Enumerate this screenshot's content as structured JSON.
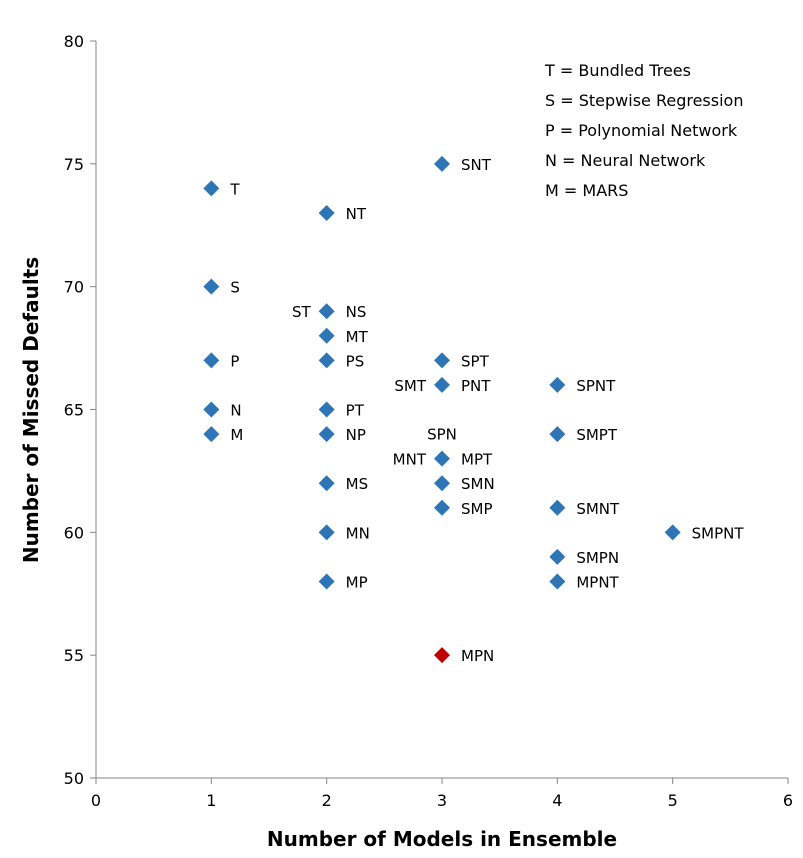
{
  "chart_data": {
    "type": "scatter",
    "title": "",
    "xlabel": "Number of Models in Ensemble",
    "ylabel": "Number of Missed Defaults",
    "xlim": [
      0,
      6
    ],
    "ylim": [
      50,
      80
    ],
    "xticks": [
      0,
      1,
      2,
      3,
      4,
      5,
      6
    ],
    "yticks": [
      50,
      55,
      60,
      65,
      70,
      75,
      80
    ],
    "grid": false,
    "legend_position": "top-right",
    "legend": [
      "T = Bundled Trees",
      "S = Stepwise Regression",
      "P = Polynomial Network",
      "N = Neural Network",
      "M = MARS"
    ],
    "colors": {
      "default": "#2E75B6",
      "highlight": "#C00000"
    },
    "points": [
      {
        "x": 1,
        "y": 74,
        "label": "T",
        "label_side": "right"
      },
      {
        "x": 1,
        "y": 70,
        "label": "S",
        "label_side": "right"
      },
      {
        "x": 1,
        "y": 67,
        "label": "P",
        "label_side": "right"
      },
      {
        "x": 1,
        "y": 65,
        "label": "N",
        "label_side": "right"
      },
      {
        "x": 1,
        "y": 64,
        "label": "M",
        "label_side": "right"
      },
      {
        "x": 2,
        "y": 73,
        "label": "NT",
        "label_side": "right"
      },
      {
        "x": 2,
        "y": 69,
        "label": "NS",
        "label_side": "right"
      },
      {
        "x": 2,
        "y": 69,
        "label": "ST",
        "label_side": "left"
      },
      {
        "x": 2,
        "y": 68,
        "label": "MT",
        "label_side": "right"
      },
      {
        "x": 2,
        "y": 67,
        "label": "PS",
        "label_side": "right"
      },
      {
        "x": 2,
        "y": 65,
        "label": "PT",
        "label_side": "right"
      },
      {
        "x": 2,
        "y": 64,
        "label": "NP",
        "label_side": "right"
      },
      {
        "x": 2,
        "y": 62,
        "label": "MS",
        "label_side": "right"
      },
      {
        "x": 2,
        "y": 60,
        "label": "MN",
        "label_side": "right"
      },
      {
        "x": 2,
        "y": 58,
        "label": "MP",
        "label_side": "right"
      },
      {
        "x": 3,
        "y": 75,
        "label": "SNT",
        "label_side": "right"
      },
      {
        "x": 3,
        "y": 67,
        "label": "SPT",
        "label_side": "right"
      },
      {
        "x": 3,
        "y": 66,
        "label": "PNT",
        "label_side": "right"
      },
      {
        "x": 3,
        "y": 66,
        "label": "SMT",
        "label_side": "left"
      },
      {
        "x": 3,
        "y": 63,
        "label": "SPN",
        "label_side": "above"
      },
      {
        "x": 3,
        "y": 63,
        "label": "MNT",
        "label_side": "left"
      },
      {
        "x": 3,
        "y": 63,
        "label": "MPT",
        "label_side": "right"
      },
      {
        "x": 3,
        "y": 62,
        "label": "SMN",
        "label_side": "right"
      },
      {
        "x": 3,
        "y": 61,
        "label": "SMP",
        "label_side": "right"
      },
      {
        "x": 3,
        "y": 55,
        "label": "MPN",
        "label_side": "right",
        "highlight": true
      },
      {
        "x": 4,
        "y": 66,
        "label": "SPNT",
        "label_side": "right"
      },
      {
        "x": 4,
        "y": 64,
        "label": "SMPT",
        "label_side": "right"
      },
      {
        "x": 4,
        "y": 61,
        "label": "SMNT",
        "label_side": "right"
      },
      {
        "x": 4,
        "y": 59,
        "label": "SMPN",
        "label_side": "right"
      },
      {
        "x": 4,
        "y": 58,
        "label": "MPNT",
        "label_side": "right"
      },
      {
        "x": 5,
        "y": 60,
        "label": "SMPNT",
        "label_side": "right"
      }
    ]
  }
}
